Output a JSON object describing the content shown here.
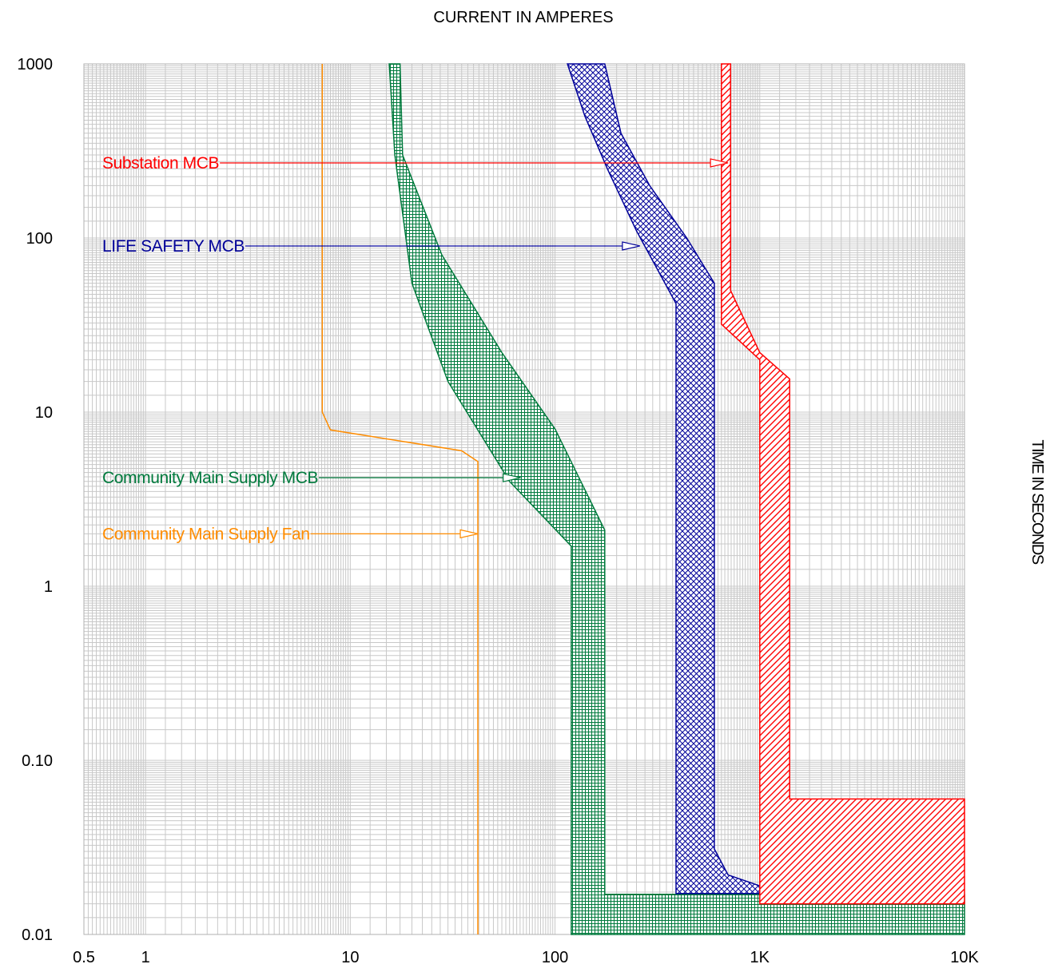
{
  "chart_data": {
    "type": "line",
    "title": "CURRENT IN AMPERES",
    "xlabel": "CURRENT IN AMPERES",
    "ylabel": "TIME IN SECONDS",
    "x_scale": "log",
    "y_scale": "log",
    "xlim": [
      0.5,
      10000
    ],
    "ylim": [
      0.01,
      1000
    ],
    "x_ticks": [
      {
        "value": 0.5,
        "label": "0.5"
      },
      {
        "value": 1,
        "label": "1"
      },
      {
        "value": 10,
        "label": "10"
      },
      {
        "value": 100,
        "label": "100"
      },
      {
        "value": 1000,
        "label": "1K"
      },
      {
        "value": 10000,
        "label": "10K"
      }
    ],
    "y_ticks": [
      {
        "value": 1000,
        "label": "1000"
      },
      {
        "value": 100,
        "label": "100"
      },
      {
        "value": 10,
        "label": "10"
      },
      {
        "value": 1,
        "label": "1"
      },
      {
        "value": 0.1,
        "label": "0.10"
      },
      {
        "value": 0.01,
        "label": "0.01"
      }
    ],
    "grid": true,
    "series": [
      {
        "name": "Community Main Supply Fan",
        "color": "#ff8c00",
        "style": "line",
        "points": [
          [
            7.3,
            1000
          ],
          [
            7.3,
            10
          ],
          [
            8.0,
            7.9
          ],
          [
            35,
            6.0
          ],
          [
            42,
            5.2
          ],
          [
            42,
            0.01
          ]
        ],
        "label_at": {
          "current": 42,
          "time": 2.0
        }
      },
      {
        "name": "Community Main Supply MCB",
        "color": "#007a3d",
        "style": "band",
        "hatch": "grid",
        "polygon": [
          [
            15.5,
            1000
          ],
          [
            17.5,
            1000
          ],
          [
            18,
            300
          ],
          [
            28,
            80
          ],
          [
            55,
            22
          ],
          [
            100,
            8
          ],
          [
            175,
            2.1
          ],
          [
            175,
            0.017
          ],
          [
            10000,
            0.017
          ],
          [
            10000,
            0.01
          ],
          [
            120,
            0.01
          ],
          [
            120,
            1.7
          ],
          [
            60,
            4.0
          ],
          [
            30,
            15
          ],
          [
            20,
            55
          ],
          [
            16.5,
            300
          ]
        ],
        "label_at": {
          "current": 68,
          "time": 4.2
        }
      },
      {
        "name": "LIFE SAFETY MCB",
        "color": "#000099",
        "style": "band",
        "hatch": "cross",
        "polygon": [
          [
            115,
            1000
          ],
          [
            175,
            1000
          ],
          [
            210,
            400
          ],
          [
            290,
            200
          ],
          [
            440,
            100
          ],
          [
            600,
            55
          ],
          [
            600,
            0.031
          ],
          [
            700,
            0.022
          ],
          [
            1000,
            0.019
          ],
          [
            1000,
            0.0172
          ],
          [
            390,
            0.0172
          ],
          [
            390,
            42
          ],
          [
            250,
            110
          ],
          [
            180,
            250
          ],
          [
            140,
            500
          ]
        ],
        "label_at": {
          "current": 260,
          "time": 90
        }
      },
      {
        "name": "Substation MCB",
        "color": "#ff0000",
        "style": "band",
        "hatch": "diag",
        "polygon": [
          [
            650,
            1000
          ],
          [
            720,
            1000
          ],
          [
            720,
            50
          ],
          [
            1000,
            22
          ],
          [
            1400,
            15.5
          ],
          [
            1400,
            0.06
          ],
          [
            10000,
            0.06
          ],
          [
            10000,
            0.015
          ],
          [
            1000,
            0.015
          ],
          [
            1000,
            20
          ],
          [
            650,
            32
          ]
        ],
        "label_at": {
          "current": 700,
          "time": 270
        }
      }
    ],
    "annotations": [
      {
        "text": "Substation MCB",
        "color": "#ff0000",
        "time": 270,
        "target_current": 700
      },
      {
        "text": "LIFE SAFETY MCB",
        "color": "#000099",
        "time": 90,
        "target_current": 260
      },
      {
        "text": "Community Main Supply MCB",
        "color": "#007a3d",
        "time": 4.2,
        "target_current": 68
      },
      {
        "text": "Community Main Supply Fan",
        "color": "#ff8c00",
        "time": 2.0,
        "target_current": 42
      }
    ]
  }
}
